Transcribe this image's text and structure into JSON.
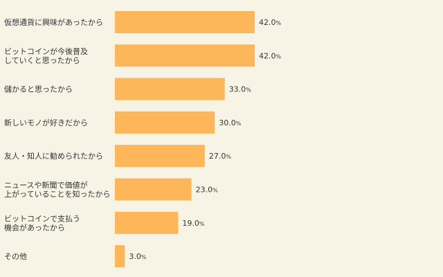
{
  "chart_data": {
    "type": "bar",
    "orientation": "horizontal",
    "categories": [
      [
        "仮想通貨に興味があったから"
      ],
      [
        "ビットコインが今後普及",
        "していくと思ったから"
      ],
      [
        "儲かると思ったから"
      ],
      [
        "新しいモノが好きだから"
      ],
      [
        "友人・知人に勧められたから"
      ],
      [
        "ニュースや新聞で価値が",
        "上がっていることを知ったから"
      ],
      [
        "ビットコインで支払う",
        "機会があったから"
      ],
      [
        "その他"
      ]
    ],
    "values": [
      42.0,
      42.0,
      33.0,
      30.0,
      27.0,
      23.0,
      19.0,
      3.0
    ],
    "value_labels": [
      "42.0",
      "42.0",
      "33.0",
      "30.0",
      "27.0",
      "23.0",
      "19.0",
      "3.0"
    ],
    "unit": "%",
    "xlim": [
      0,
      42.0
    ],
    "grid": false,
    "legend": "none",
    "colors": {
      "bar": "#fdb75a",
      "background": "#f7f4e6",
      "text": "#333333"
    }
  }
}
